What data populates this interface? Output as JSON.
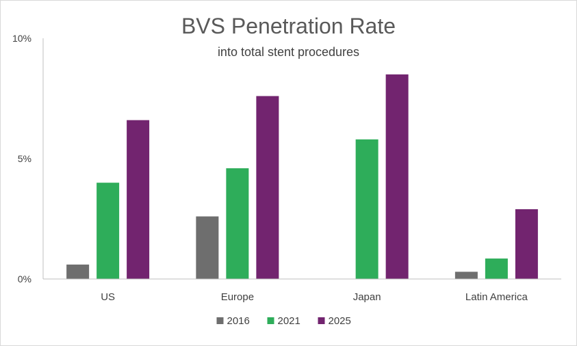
{
  "chart_data": {
    "type": "bar",
    "title": "BVS Penetration Rate",
    "subtitle": "into total stent procedures",
    "xlabel": "",
    "ylabel": "",
    "ylim": [
      0,
      10
    ],
    "yticks": [
      {
        "value": 0,
        "label": "0%"
      },
      {
        "value": 5,
        "label": "5%"
      },
      {
        "value": 10,
        "label": "10%"
      }
    ],
    "categories": [
      "US",
      "Europe",
      "Japan",
      "Latin America"
    ],
    "series": [
      {
        "name": "2016",
        "color": "#6e6e6e",
        "values": [
          0.6,
          2.6,
          0,
          0.3
        ]
      },
      {
        "name": "2021",
        "color": "#2ead5a",
        "values": [
          4.0,
          4.6,
          5.8,
          0.85
        ]
      },
      {
        "name": "2025",
        "color": "#72246f",
        "values": [
          6.6,
          7.6,
          8.5,
          2.9
        ]
      }
    ],
    "legend_position": "bottom",
    "grid": false
  }
}
